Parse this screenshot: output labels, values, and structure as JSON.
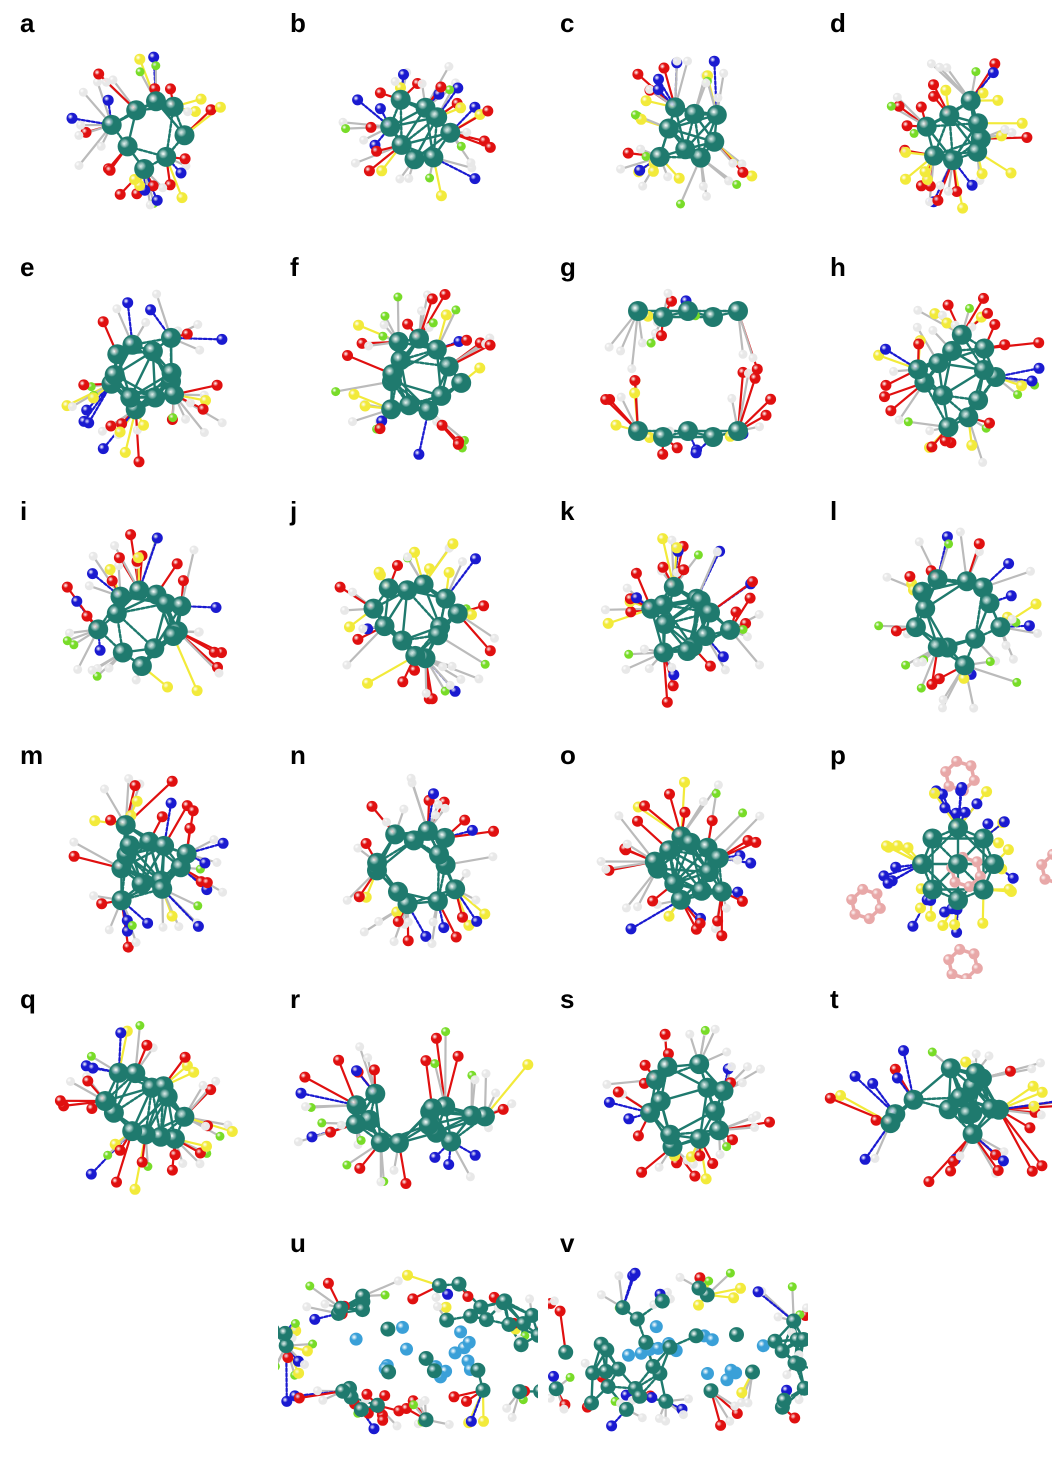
{
  "colors": {
    "metal": "#1f7a6e",
    "metal_dark": "#145a51",
    "sulfur": "#f2ea3a",
    "oxygen": "#e01010",
    "nitrogen": "#1a1ad0",
    "fluorine": "#78dc28",
    "hydrogen": "#e8e8e8",
    "carbon_aromatic": "#e8a8a8",
    "inner_metal": "#3aa0d8",
    "bond": "#1f7a6e"
  },
  "panels": [
    {
      "label": "a",
      "style": "small"
    },
    {
      "label": "b",
      "style": "small"
    },
    {
      "label": "c",
      "style": "small"
    },
    {
      "label": "d",
      "style": "small"
    },
    {
      "label": "e",
      "style": "medium"
    },
    {
      "label": "f",
      "style": "medium"
    },
    {
      "label": "g",
      "style": "stack"
    },
    {
      "label": "h",
      "style": "ring"
    },
    {
      "label": "i",
      "style": "ring"
    },
    {
      "label": "j",
      "style": "medium"
    },
    {
      "label": "k",
      "style": "medium"
    },
    {
      "label": "l",
      "style": "ring"
    },
    {
      "label": "m",
      "style": "medium"
    },
    {
      "label": "n",
      "style": "medium"
    },
    {
      "label": "o",
      "style": "medium"
    },
    {
      "label": "p",
      "style": "aromatic"
    },
    {
      "label": "q",
      "style": "medium"
    },
    {
      "label": "r",
      "style": "wide"
    },
    {
      "label": "s",
      "style": "medium"
    },
    {
      "label": "t",
      "style": "wide"
    },
    {
      "label": "u",
      "style": "large"
    },
    {
      "label": "v",
      "style": "large"
    }
  ]
}
